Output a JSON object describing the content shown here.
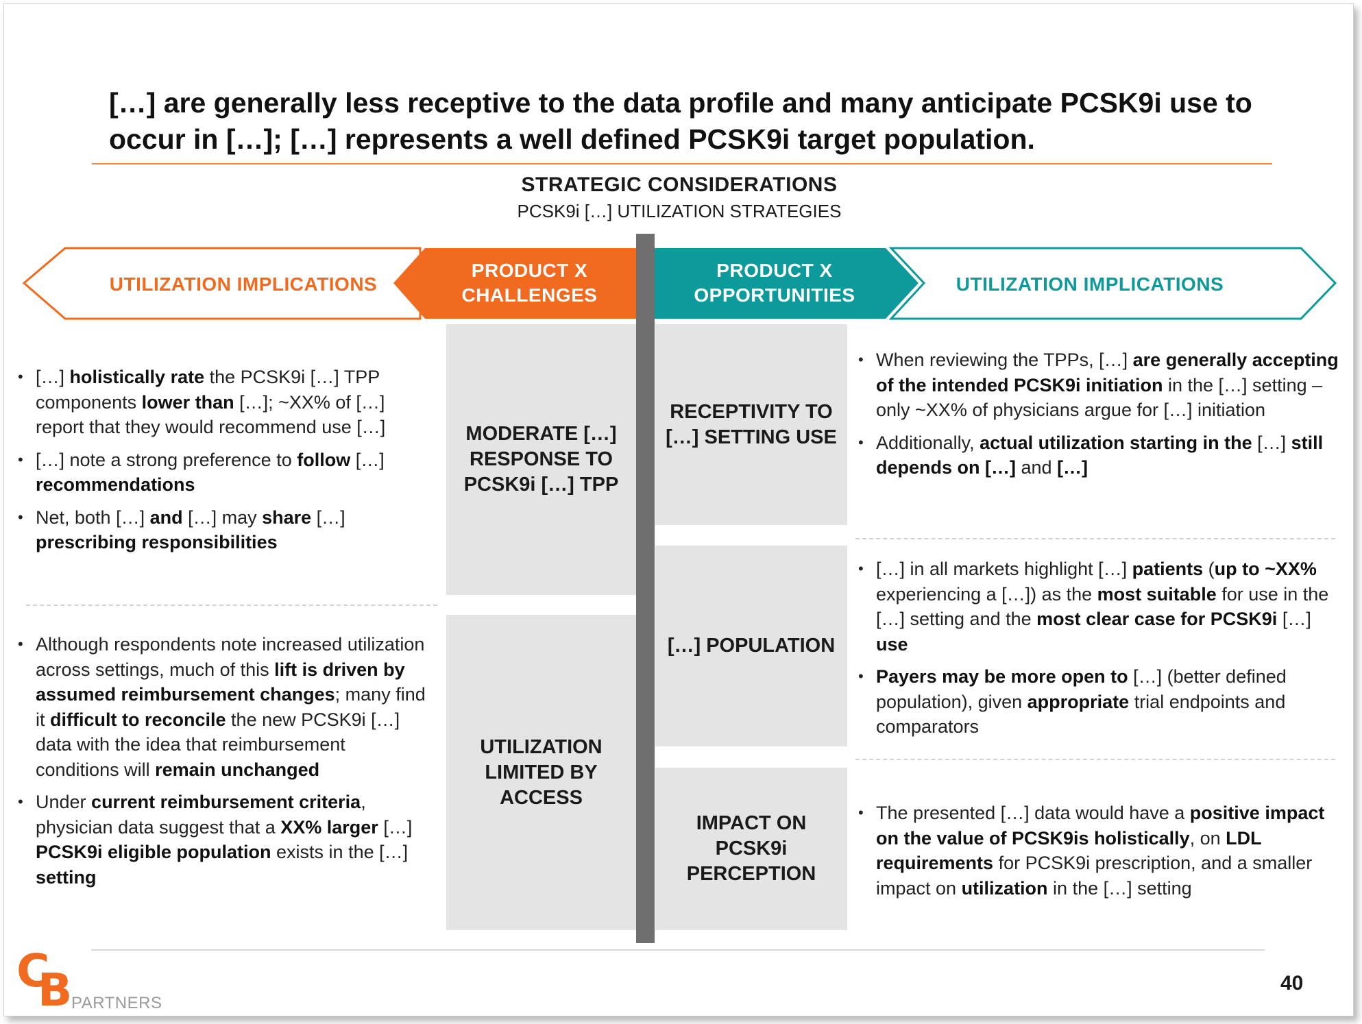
{
  "title": "[…] are generally less receptive to the data profile and many anticipate PCSK9i use to occur in […]; […] represents a well defined PCSK9i target population.",
  "header": {
    "heading": "STRATEGIC CONSIDERATIONS",
    "subheading": "PCSK9i […] UTILIZATION STRATEGIES"
  },
  "banner": {
    "left_implications": "UTILIZATION IMPLICATIONS",
    "challenges": "PRODUCT X CHALLENGES",
    "opportunities": "PRODUCT X OPPORTUNITIES",
    "right_implications": "UTILIZATION IMPLICATIONS"
  },
  "challenges": [
    "MODERATE […] RESPONSE TO PCSK9i […] TPP",
    "UTILIZATION LIMITED BY ACCESS"
  ],
  "opportunities": [
    "RECEPTIVITY TO […] SETTING USE",
    "[…] POPULATION",
    "IMPACT ON PCSK9i PERCEPTION"
  ],
  "left_bullets": {
    "group1": [
      [
        [
          "n",
          "[…] "
        ],
        [
          "b",
          "holistically rate"
        ],
        [
          "n",
          " the PCSK9i […] TPP components "
        ],
        [
          "b",
          "lower than"
        ],
        [
          "n",
          " […]; ~XX% of […] report that they would recommend use […]"
        ]
      ],
      [
        [
          "n",
          "[…] note a strong preference to "
        ],
        [
          "b",
          "follow"
        ],
        [
          "n",
          " […] "
        ],
        [
          "b",
          "recommendations"
        ]
      ],
      [
        [
          "n",
          "Net, both […] "
        ],
        [
          "b",
          "and"
        ],
        [
          "n",
          " […] may "
        ],
        [
          "b",
          "share"
        ],
        [
          "n",
          " […] "
        ],
        [
          "b",
          "prescribing responsibilities"
        ]
      ]
    ],
    "group2": [
      [
        [
          "n",
          "Although respondents note increased utilization across settings, much of this "
        ],
        [
          "b",
          "lift is driven by assumed reimbursement changes"
        ],
        [
          "n",
          "; many find it "
        ],
        [
          "b",
          "difficult to reconcile"
        ],
        [
          "n",
          " the new PCSK9i […] data with the idea that reimbursement conditions will "
        ],
        [
          "b",
          "remain unchanged"
        ]
      ],
      [
        [
          "n",
          "Under "
        ],
        [
          "b",
          "current reimbursement criteria"
        ],
        [
          "n",
          ", physician data suggest that a "
        ],
        [
          "b",
          "XX% larger"
        ],
        [
          "n",
          " […] "
        ],
        [
          "b",
          "PCSK9i eligible population"
        ],
        [
          "n",
          " exists in the […] "
        ],
        [
          "b",
          "setting"
        ]
      ]
    ]
  },
  "right_bullets": {
    "group1": [
      [
        [
          "n",
          "When reviewing the TPPs, […] "
        ],
        [
          "b",
          "are generally accepting of the intended PCSK9i initiation"
        ],
        [
          "n",
          " in the […] setting – only ~XX% of physicians argue for […] initiation"
        ]
      ],
      [
        [
          "n",
          "Additionally, "
        ],
        [
          "b",
          "actual utilization starting in the"
        ],
        [
          "n",
          " […] "
        ],
        [
          "b",
          "still depends on […]"
        ],
        [
          "n",
          " and "
        ],
        [
          "b",
          "[…]"
        ]
      ]
    ],
    "group2": [
      [
        [
          "n",
          "[…] in all markets highlight […] "
        ],
        [
          "b",
          "patients"
        ],
        [
          "n",
          " ("
        ],
        [
          "b",
          "up to ~XX%"
        ],
        [
          "n",
          " experiencing a […]) as the "
        ],
        [
          "b",
          "most suitable"
        ],
        [
          "n",
          " for use in the […] setting and the "
        ],
        [
          "b",
          "most clear case for PCSK9i"
        ],
        [
          "n",
          " […] "
        ],
        [
          "b",
          "use"
        ]
      ],
      [
        [
          "b",
          "Payers may be more open to"
        ],
        [
          "n",
          " […] (better defined population), given "
        ],
        [
          "b",
          "appropriate"
        ],
        [
          "n",
          " trial endpoints and comparators"
        ]
      ]
    ],
    "group3": [
      [
        [
          "n",
          "The presented […] data would have a "
        ],
        [
          "b",
          "positive impact on the value of PCSK9is holistically"
        ],
        [
          "n",
          ", on "
        ],
        [
          "b",
          "LDL requirements"
        ],
        [
          "n",
          " for PCSK9i prescription, and a smaller impact on "
        ],
        [
          "b",
          "utilization"
        ],
        [
          "n",
          " in the […] setting"
        ]
      ]
    ]
  },
  "footer": {
    "logo_mark_c": "C",
    "logo_mark_b": "B",
    "logo_text": "PARTNERS",
    "page_number": "40"
  },
  "colors": {
    "orange": "#f06a1f",
    "teal": "#0e9a9a",
    "gray_box": "#e4e4e4",
    "divider": "#6f6f6f"
  }
}
